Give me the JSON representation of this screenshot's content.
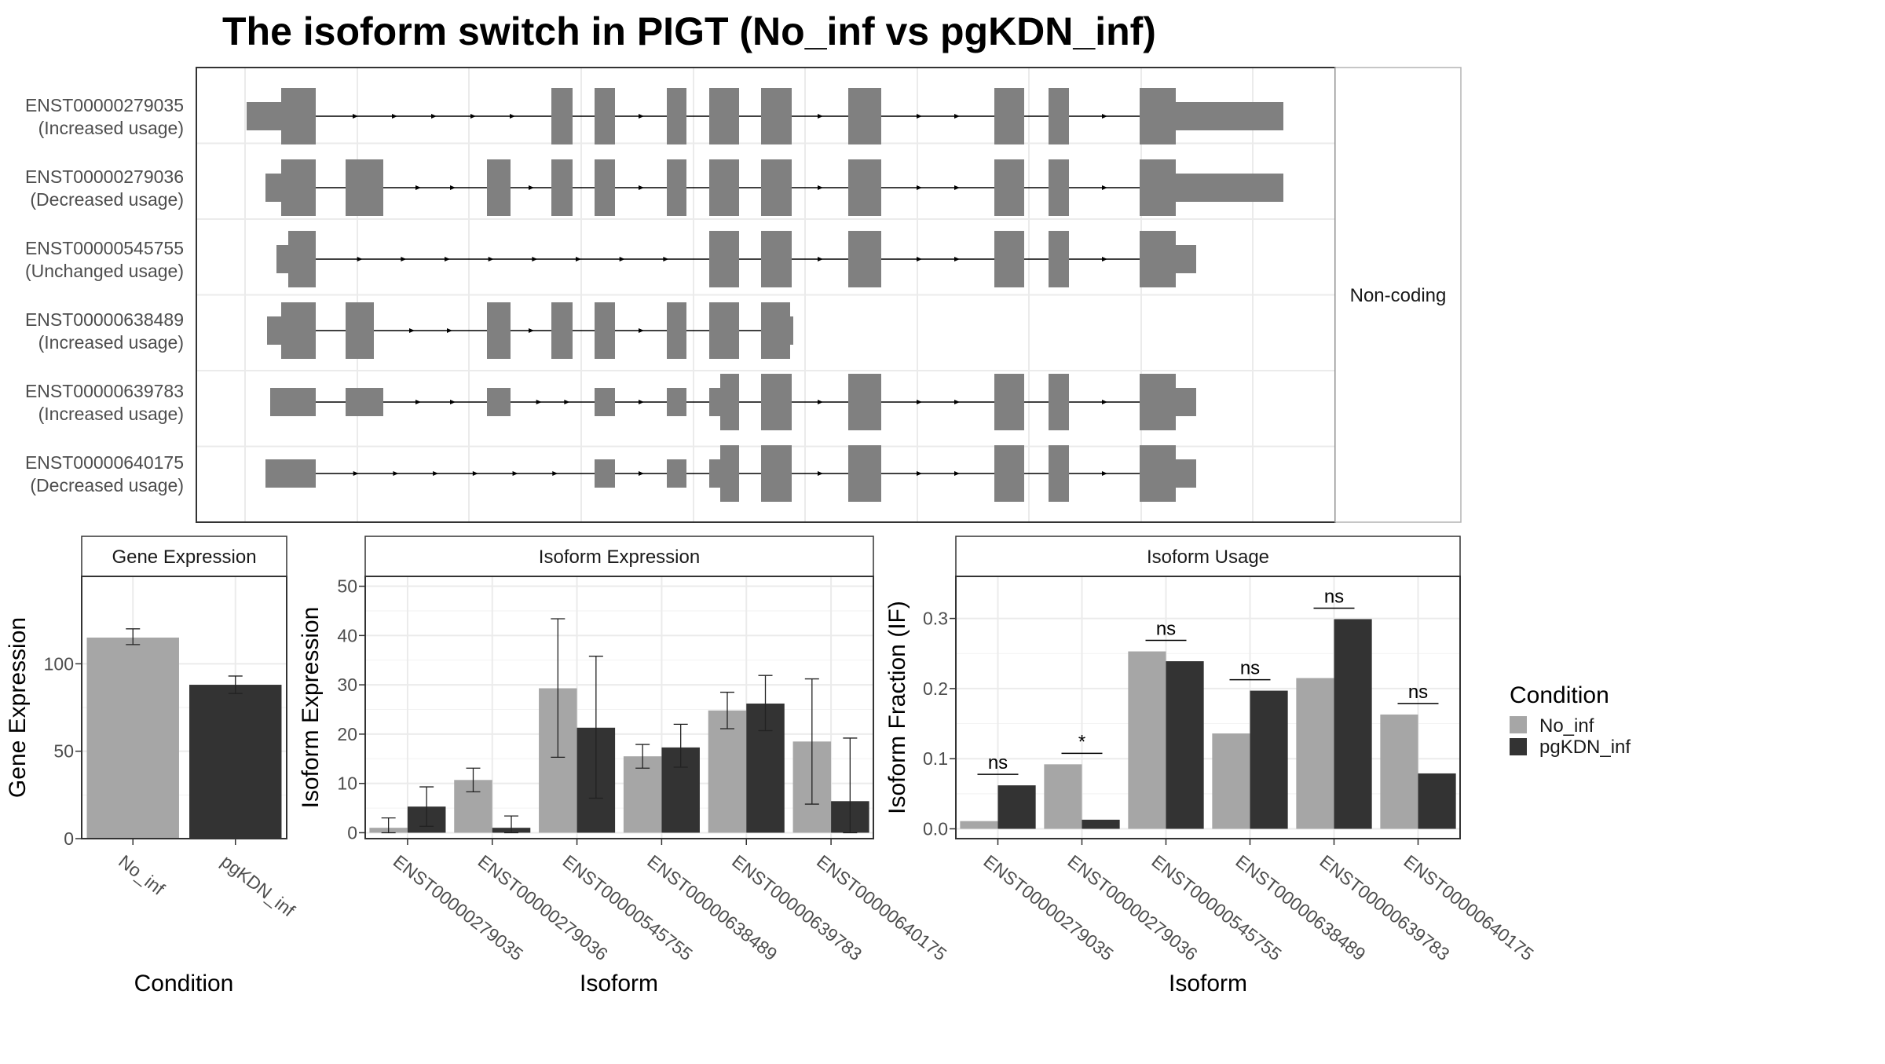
{
  "title": "The isoform switch in PIGT (No_inf vs pgKDN_inf)",
  "colors": {
    "No_inf": "#a6a6a6",
    "pgKDN_inf": "#333333",
    "exon": "#808080"
  },
  "structure": {
    "strip": "Non-coding",
    "isoforms": [
      {
        "id": "ENST00000279035",
        "usage": "(Increased usage)"
      },
      {
        "id": "ENST00000279036",
        "usage": "(Decreased usage)"
      },
      {
        "id": "ENST00000545755",
        "usage": "(Unchanged usage)"
      },
      {
        "id": "ENST00000638489",
        "usage": "(Increased usage)"
      },
      {
        "id": "ENST00000639783",
        "usage": "(Increased usage)"
      },
      {
        "id": "ENST00000640175",
        "usage": "(Decreased usage)"
      }
    ]
  },
  "legend": {
    "title": "Condition",
    "items": [
      "No_inf",
      "pgKDN_inf"
    ]
  },
  "chart_data": [
    {
      "type": "bar",
      "strip": "Gene Expression",
      "categories": [
        "No_inf",
        "pgKDN_inf"
      ],
      "values": [
        115,
        88
      ],
      "error_low": [
        111,
        83
      ],
      "error_high": [
        120,
        93
      ],
      "xlabel": "Condition",
      "ylabel": "Gene Expression",
      "ylim": [
        0,
        150
      ],
      "yticks": [
        0,
        50,
        100
      ],
      "grid": true
    },
    {
      "type": "bar",
      "strip": "Isoform Expression",
      "categories": [
        "ENST00000279035",
        "ENST00000279036",
        "ENST00000545755",
        "ENST00000638489",
        "ENST00000639783",
        "ENST00000640175"
      ],
      "series": [
        {
          "name": "No_inf",
          "values": [
            1.0,
            10.7,
            29.3,
            15.5,
            24.8,
            18.5
          ],
          "error_low": [
            0,
            8.3,
            15.3,
            13.1,
            21.1,
            5.8
          ],
          "error_high": [
            3.0,
            13.1,
            43.4,
            17.9,
            28.5,
            31.2
          ]
        },
        {
          "name": "pgKDN_inf",
          "values": [
            5.3,
            1.0,
            21.3,
            17.3,
            26.2,
            6.4
          ],
          "error_low": [
            1.3,
            0,
            7.0,
            13.3,
            20.7,
            0
          ],
          "error_high": [
            9.3,
            3.4,
            35.8,
            22.0,
            31.9,
            19.2
          ]
        }
      ],
      "xlabel": "Isoform",
      "ylabel": "Isoform Expression",
      "ylim": [
        -1.2,
        52
      ],
      "yticks": [
        0,
        10,
        20,
        30,
        40,
        50
      ],
      "grid": true
    },
    {
      "type": "bar",
      "strip": "Isoform Usage",
      "categories": [
        "ENST00000279035",
        "ENST00000279036",
        "ENST00000545755",
        "ENST00000638489",
        "ENST00000639783",
        "ENST00000640175"
      ],
      "series": [
        {
          "name": "No_inf",
          "values": [
            0.011,
            0.092,
            0.253,
            0.136,
            0.215,
            0.163
          ]
        },
        {
          "name": "pgKDN_inf",
          "values": [
            0.062,
            0.013,
            0.239,
            0.197,
            0.299,
            0.079
          ]
        }
      ],
      "significance": [
        "ns",
        "*",
        "ns",
        "ns",
        "ns",
        "ns"
      ],
      "xlabel": "Isoform",
      "ylabel": "Isoform Fraction (IF)",
      "ylim": [
        -0.014,
        0.36
      ],
      "yticks": [
        0.0,
        0.1,
        0.2,
        0.3
      ],
      "yticklabels": [
        "0.0",
        "0.1",
        "0.2",
        "0.3"
      ],
      "grid": true
    }
  ]
}
